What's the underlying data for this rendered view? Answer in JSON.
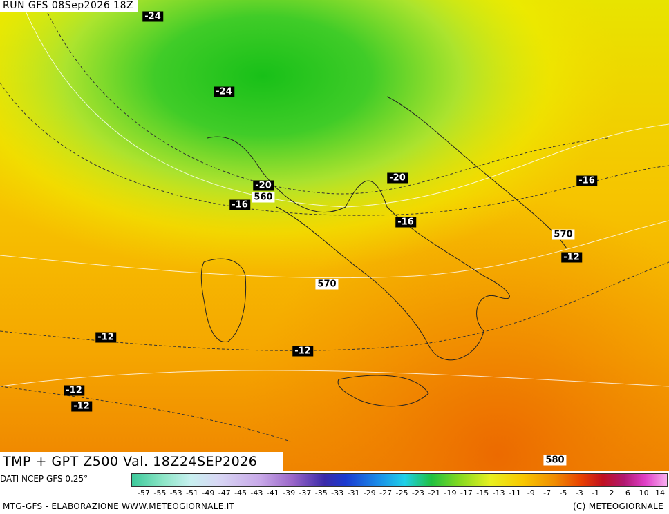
{
  "header": {
    "run": "RUN GFS 08Sep2026 18Z"
  },
  "title": "TMP + GPT Z500 Val. 18Z24SEP2026",
  "contour_labels": [
    -24,
    -24,
    -20,
    560,
    -16,
    -20,
    -16,
    -16,
    570,
    -12,
    570,
    -12,
    -12,
    -12,
    -12,
    580
  ],
  "legend": {
    "source": "DATI NCEP GFS 0.25°",
    "ticks": [
      -57,
      -55,
      -53,
      -51,
      -49,
      -47,
      -45,
      -43,
      -41,
      -39,
      -37,
      -35,
      -33,
      -31,
      -29,
      -27,
      -25,
      -23,
      -21,
      -19,
      -17,
      -15,
      -13,
      -11,
      -9,
      -7,
      -5,
      -3,
      -1,
      2,
      6,
      10,
      14
    ]
  },
  "footer": {
    "left": "MTG-GFS - ELABORAZIONE WWW.METEOGIORNALE.IT",
    "right": "(C) METEOGIORNALE"
  }
}
